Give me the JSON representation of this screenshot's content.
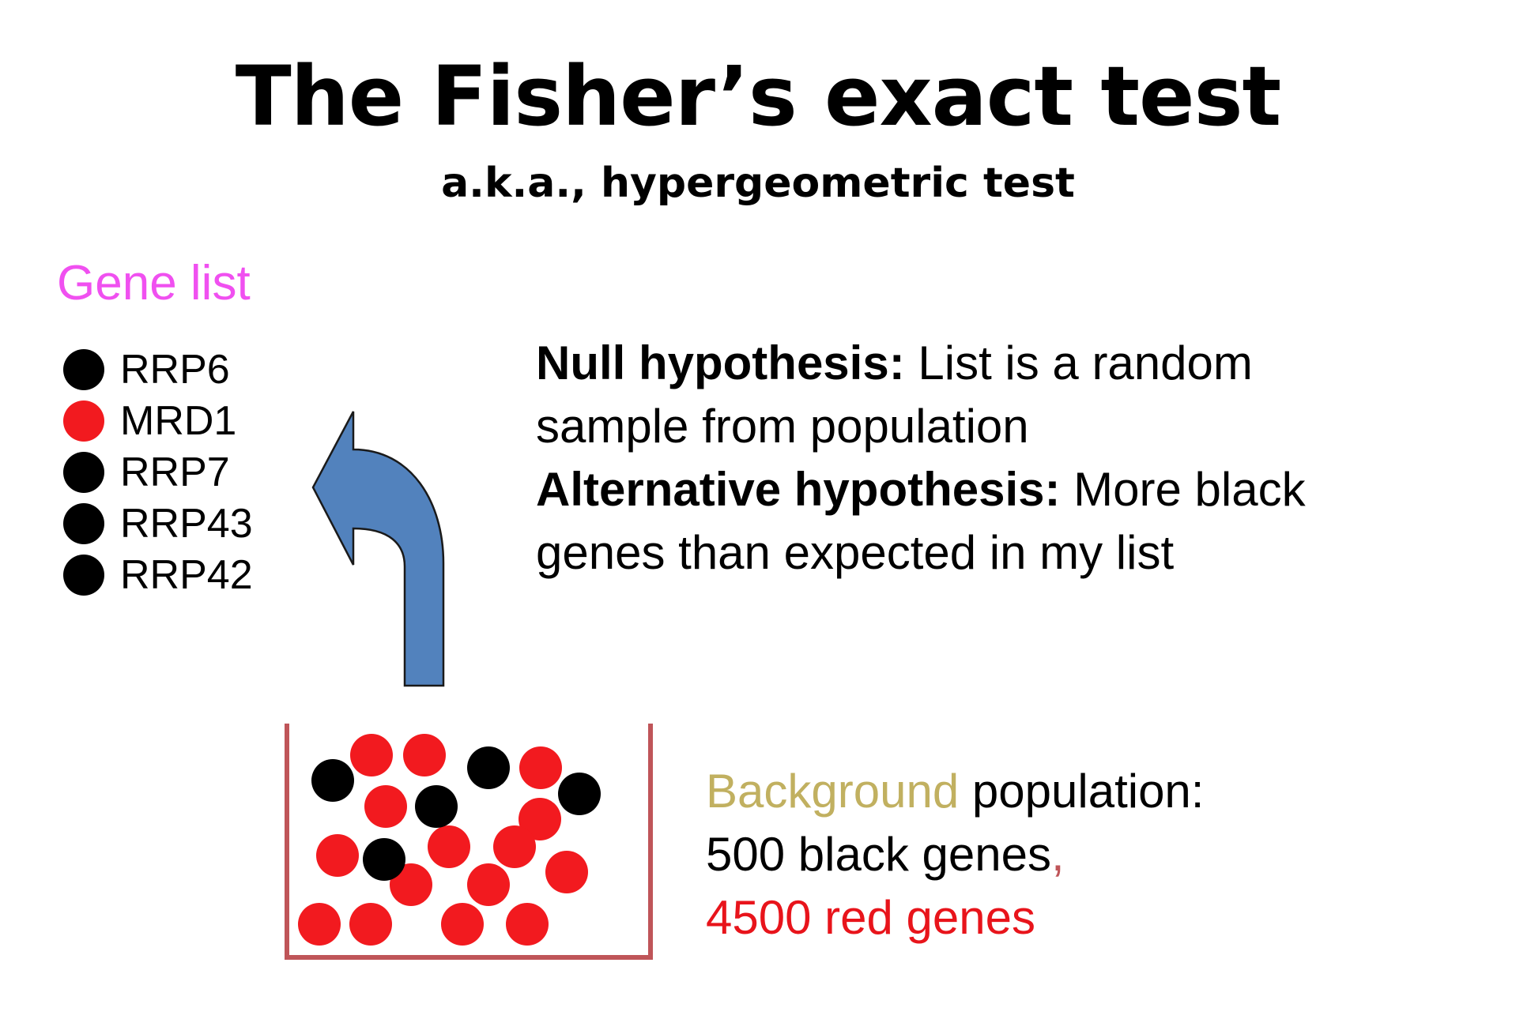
{
  "title": "The Fisher’s exact test",
  "subtitle": "a.k.a., hypergeometric test",
  "gene_list": {
    "heading": "Gene list",
    "items": [
      {
        "label": "RRP6",
        "color": "black"
      },
      {
        "label": "MRD1",
        "color": "red"
      },
      {
        "label": "RRP7",
        "color": "black"
      },
      {
        "label": "RRP43",
        "color": "black"
      },
      {
        "label": "RRP42",
        "color": "black"
      }
    ]
  },
  "hypotheses": {
    "null_label": "Null hypothesis:",
    "null_text_1": " List is a random",
    "null_text_2": "sample from population",
    "alt_label": "Alternative hypothesis:",
    "alt_text_1": " More black",
    "alt_text_2": "genes than expected in my list"
  },
  "background": {
    "label": "Background",
    "label_rest": " population:",
    "black_count_text": "500 black genes",
    "comma": ",",
    "red_count_text": "4500 red genes"
  },
  "colors": {
    "black_gene": "#000000",
    "red_gene": "#f21a1f",
    "gene_list_heading": "#f050f0",
    "background_label": "#c1b060",
    "red_text": "#e8141b",
    "arrow_fill": "#5282bd",
    "container_stroke": "#bf5559"
  },
  "icons": {
    "arrow": "curved-up-left-arrow-icon",
    "container": "open-box-container"
  }
}
